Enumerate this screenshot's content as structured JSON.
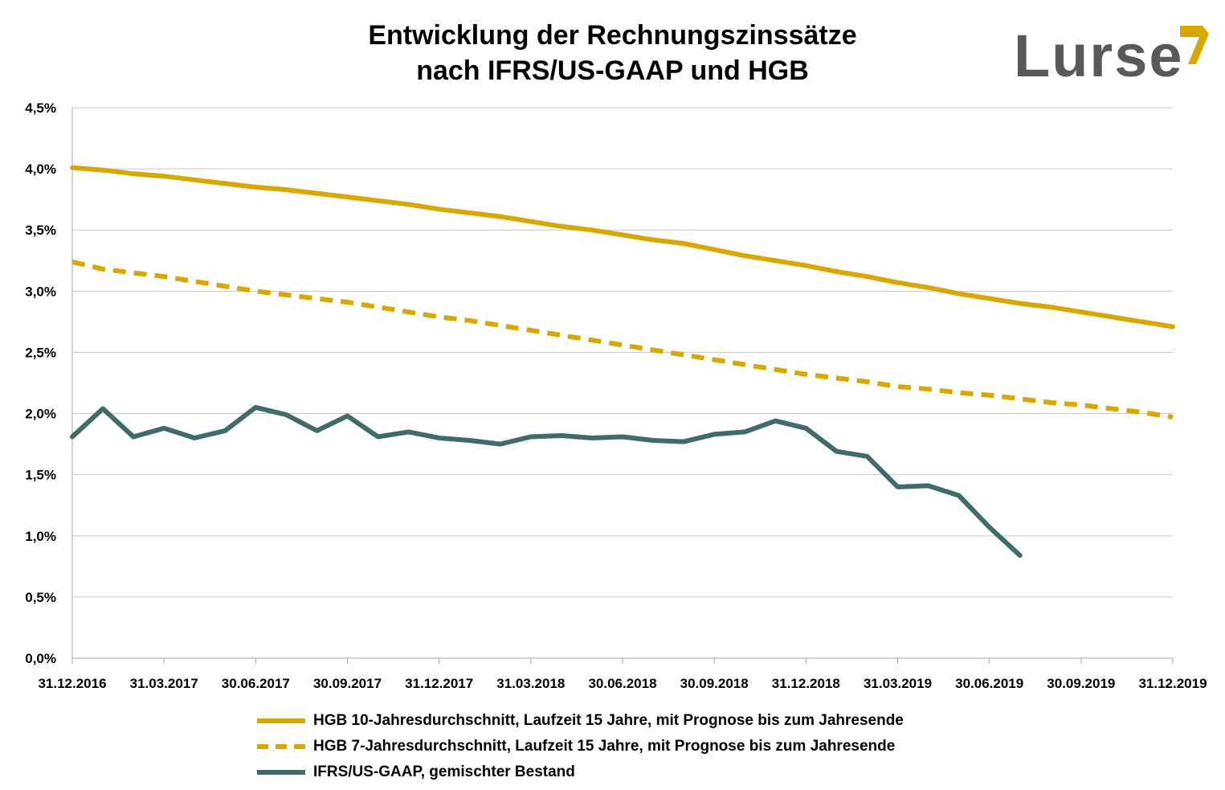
{
  "title_line1": "Entwicklung der Rechnungszinssätze",
  "title_line2": "nach IFRS/US-GAAP und HGB",
  "logo_text": "Lurse",
  "colors": {
    "gold": "#d9a800",
    "teal": "#3f6b68",
    "grid": "#c8c8c8",
    "axis": "#a6a6a6"
  },
  "chart_data": {
    "type": "line",
    "xlabel": "",
    "ylabel": "",
    "ylim": [
      0,
      4.5
    ],
    "yticks": [
      "0,0%",
      "0,5%",
      "1,0%",
      "1,5%",
      "2,0%",
      "2,5%",
      "3,0%",
      "3,5%",
      "4,0%",
      "4,5%"
    ],
    "xticks": [
      "31.12.2016",
      "31.03.2017",
      "30.06.2017",
      "30.09.2017",
      "31.12.2017",
      "31.03.2018",
      "30.06.2018",
      "30.09.2018",
      "31.12.2018",
      "31.03.2019",
      "30.06.2019",
      "30.09.2019",
      "31.12.2019"
    ],
    "x_months": [
      "12/2016",
      "01/2017",
      "02/2017",
      "03/2017",
      "04/2017",
      "05/2017",
      "06/2017",
      "07/2017",
      "08/2017",
      "09/2017",
      "10/2017",
      "11/2017",
      "12/2017",
      "01/2018",
      "02/2018",
      "03/2018",
      "04/2018",
      "05/2018",
      "06/2018",
      "07/2018",
      "08/2018",
      "09/2018",
      "10/2018",
      "11/2018",
      "12/2018",
      "01/2019",
      "02/2019",
      "03/2019",
      "04/2019",
      "05/2019",
      "06/2019",
      "07/2019",
      "08/2019",
      "09/2019",
      "10/2019",
      "11/2019",
      "12/2019"
    ],
    "grid": true,
    "legend_position": "bottom",
    "series": [
      {
        "name": "HGB 10-Jahresdurchschnitt, Laufzeit 15 Jahre, mit Prognose bis zum Jahresende",
        "style": "solid",
        "color": "#d9a800",
        "values": [
          4.01,
          3.99,
          3.96,
          3.94,
          3.91,
          3.88,
          3.85,
          3.83,
          3.8,
          3.77,
          3.74,
          3.71,
          3.67,
          3.64,
          3.61,
          3.57,
          3.53,
          3.5,
          3.46,
          3.42,
          3.39,
          3.34,
          3.29,
          3.25,
          3.21,
          3.16,
          3.12,
          3.07,
          3.03,
          2.98,
          2.94,
          2.9,
          2.87,
          2.83,
          2.79,
          2.75,
          2.71
        ]
      },
      {
        "name": "HGB 7-Jahresdurchschnitt, Laufzeit 15 Jahre, mit Prognose bis zum Jahresende",
        "style": "dashed",
        "color": "#d9a800",
        "values": [
          3.24,
          3.18,
          3.15,
          3.12,
          3.08,
          3.04,
          3.0,
          2.97,
          2.94,
          2.91,
          2.87,
          2.83,
          2.79,
          2.76,
          2.72,
          2.68,
          2.64,
          2.6,
          2.56,
          2.52,
          2.48,
          2.44,
          2.4,
          2.36,
          2.32,
          2.29,
          2.26,
          2.22,
          2.2,
          2.17,
          2.15,
          2.12,
          2.09,
          2.07,
          2.04,
          2.01,
          1.97
        ]
      },
      {
        "name": "IFRS/US-GAAP, gemischter Bestand",
        "style": "solid",
        "color": "#3f6b68",
        "values": [
          1.81,
          2.04,
          1.81,
          1.88,
          1.8,
          1.86,
          2.05,
          1.99,
          1.86,
          1.98,
          1.81,
          1.85,
          1.8,
          1.78,
          1.75,
          1.81,
          1.82,
          1.8,
          1.81,
          1.78,
          1.77,
          1.83,
          1.85,
          1.94,
          1.88,
          1.69,
          1.65,
          1.4,
          1.41,
          1.33,
          1.07,
          0.84
        ]
      }
    ]
  }
}
